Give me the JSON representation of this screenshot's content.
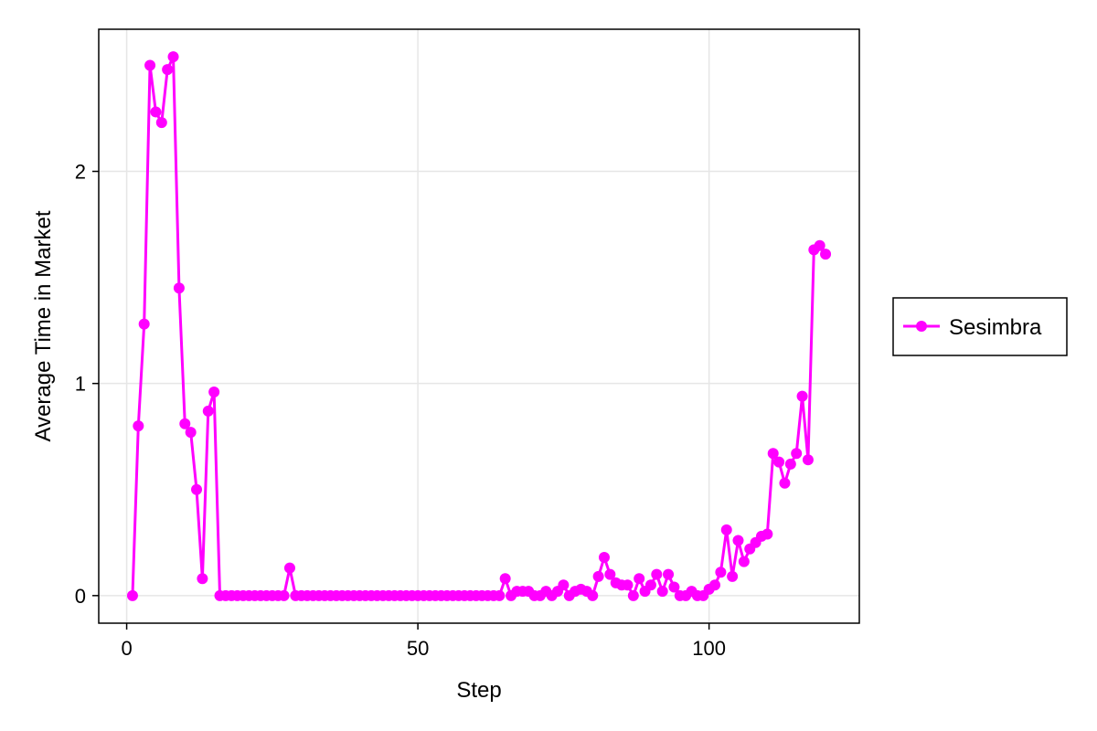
{
  "chart_data": {
    "type": "line",
    "xlabel": "Step",
    "ylabel": "Average Time in Market",
    "xlim": [
      -4.8,
      125.8
    ],
    "ylim": [
      -0.13,
      2.67
    ],
    "xticks": [
      0,
      50,
      100
    ],
    "yticks": [
      0,
      1,
      2
    ],
    "grid": true,
    "legend_position": "right",
    "series": [
      {
        "name": "Sesimbra",
        "color": "#ff00ff",
        "marker": "circle",
        "x": [
          1,
          2,
          3,
          4,
          5,
          6,
          7,
          8,
          9,
          10,
          11,
          12,
          13,
          14,
          15,
          16,
          17,
          18,
          19,
          20,
          21,
          22,
          23,
          24,
          25,
          26,
          27,
          28,
          29,
          30,
          31,
          32,
          33,
          34,
          35,
          36,
          37,
          38,
          39,
          40,
          41,
          42,
          43,
          44,
          45,
          46,
          47,
          48,
          49,
          50,
          51,
          52,
          53,
          54,
          55,
          56,
          57,
          58,
          59,
          60,
          61,
          62,
          63,
          64,
          65,
          66,
          67,
          68,
          69,
          70,
          71,
          72,
          73,
          74,
          75,
          76,
          77,
          78,
          79,
          80,
          81,
          82,
          83,
          84,
          85,
          86,
          87,
          88,
          89,
          90,
          91,
          92,
          93,
          94,
          95,
          96,
          97,
          98,
          99,
          100,
          101,
          102,
          103,
          104,
          105,
          106,
          107,
          108,
          109,
          110,
          111,
          112,
          113,
          114,
          115,
          116,
          117,
          118,
          119,
          120
        ],
        "y": [
          0,
          0.8,
          1.28,
          2.5,
          2.28,
          2.23,
          2.48,
          2.54,
          1.45,
          0.81,
          0.77,
          0.5,
          0.08,
          0.87,
          0.96,
          0,
          0,
          0,
          0,
          0,
          0,
          0,
          0,
          0,
          0,
          0,
          0,
          0.13,
          0,
          0,
          0,
          0,
          0,
          0,
          0,
          0,
          0,
          0,
          0,
          0,
          0,
          0,
          0,
          0,
          0,
          0,
          0,
          0,
          0,
          0,
          0,
          0,
          0,
          0,
          0,
          0,
          0,
          0,
          0,
          0,
          0,
          0,
          0,
          0,
          0.08,
          0,
          0.02,
          0.02,
          0.02,
          0,
          0,
          0.02,
          0,
          0.02,
          0.05,
          0,
          0.02,
          0.03,
          0.02,
          0,
          0.09,
          0.18,
          0.1,
          0.06,
          0.05,
          0.05,
          0,
          0.08,
          0.02,
          0.05,
          0.1,
          0.02,
          0.1,
          0.04,
          0,
          0,
          0.02,
          0,
          0,
          0.03,
          0.05,
          0.11,
          0.31,
          0.09,
          0.26,
          0.16,
          0.22,
          0.25,
          0.28,
          0.29,
          0.67,
          0.63,
          0.53,
          0.62,
          0.67,
          0.94,
          0.64,
          1.63,
          1.65,
          1.61
        ]
      }
    ]
  }
}
